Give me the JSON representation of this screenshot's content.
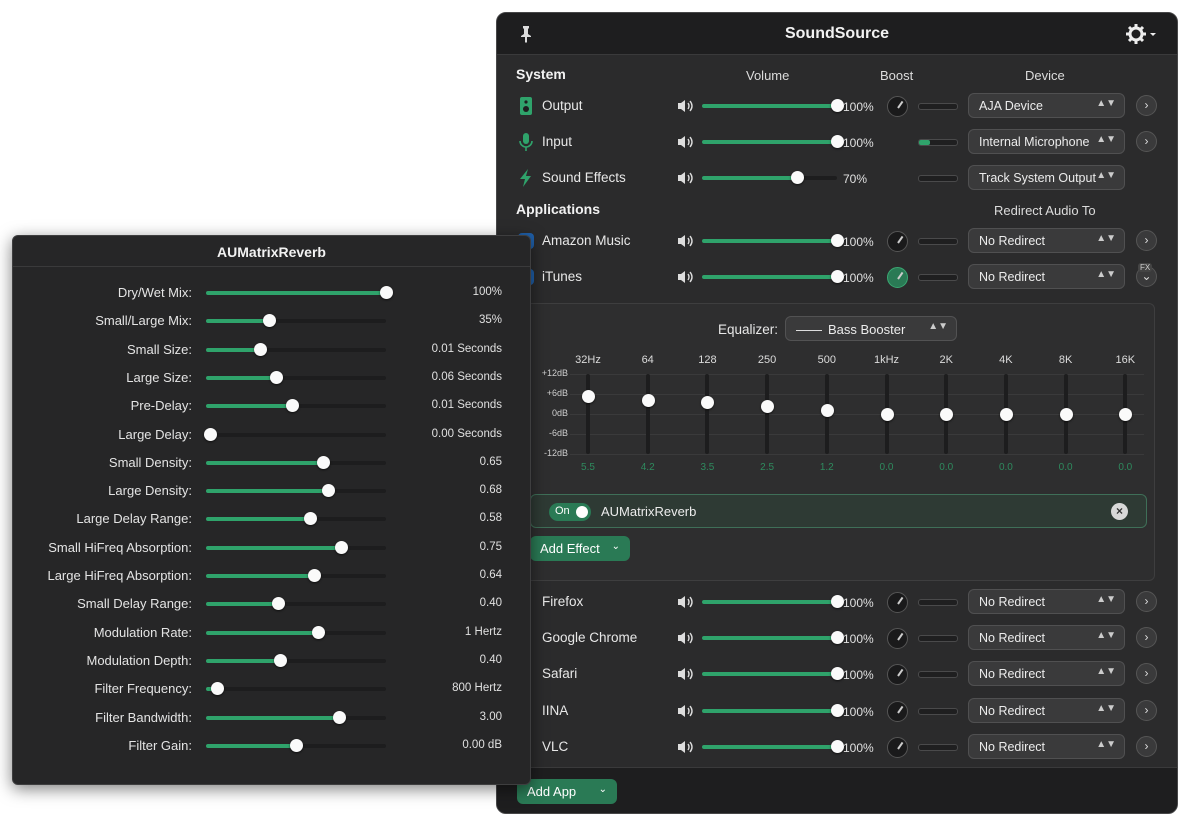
{
  "soundsource": {
    "title": "SoundSource",
    "headers": {
      "system": "System",
      "volume": "Volume",
      "boost": "Boost",
      "device": "Device",
      "applications": "Applications",
      "redirect": "Redirect Audio To"
    },
    "system_rows": [
      {
        "name": "Output",
        "icon": "speaker-icon",
        "volume": 100,
        "pct": "100%",
        "knob": true,
        "meter": 0,
        "device": "AJA Device",
        "chevron": true
      },
      {
        "name": "Input",
        "icon": "microphone-icon",
        "volume": 100,
        "pct": "100%",
        "knob": false,
        "meter": 0.3,
        "device": "Internal Microphone",
        "chevron": true
      },
      {
        "name": "Sound Effects",
        "icon": "lightning-icon",
        "volume": 70,
        "pct": "70%",
        "knob": false,
        "meter": 0,
        "device": "Track System Output",
        "chevron": false
      }
    ],
    "app_rows_top": [
      {
        "name": "Amazon Music",
        "volume": 100,
        "pct": "100%",
        "redirect": "No Redirect"
      },
      {
        "name": "iTunes",
        "volume": 100,
        "pct": "100%",
        "redirect": "No Redirect"
      }
    ],
    "equalizer": {
      "label": "Equalizer:",
      "preset": "Bass Booster",
      "db_labels": [
        "+12dB",
        "+6dB",
        "0dB",
        "-6dB",
        "-12dB"
      ],
      "bands": [
        {
          "freq": "32Hz",
          "gain": 5.5,
          "label": "5.5"
        },
        {
          "freq": "64",
          "gain": 4.2,
          "label": "4.2"
        },
        {
          "freq": "128",
          "gain": 3.5,
          "label": "3.5"
        },
        {
          "freq": "250",
          "gain": 2.5,
          "label": "2.5"
        },
        {
          "freq": "500",
          "gain": 1.2,
          "label": "1.2"
        },
        {
          "freq": "1kHz",
          "gain": 0,
          "label": "0.0"
        },
        {
          "freq": "2K",
          "gain": 0,
          "label": "0.0"
        },
        {
          "freq": "4K",
          "gain": 0,
          "label": "0.0"
        },
        {
          "freq": "8K",
          "gain": 0,
          "label": "0.0"
        },
        {
          "freq": "16K",
          "gain": 0,
          "label": "0.0"
        }
      ],
      "effect": {
        "toggle": "On",
        "name": "AUMatrixReverb"
      },
      "add_effect": "Add Effect",
      "fx_badge": "FX"
    },
    "app_rows_bottom": [
      {
        "name": "Firefox",
        "volume": 100,
        "pct": "100%",
        "redirect": "No Redirect"
      },
      {
        "name": "Google Chrome",
        "volume": 100,
        "pct": "100%",
        "redirect": "No Redirect"
      },
      {
        "name": "Safari",
        "volume": 100,
        "pct": "100%",
        "redirect": "No Redirect"
      },
      {
        "name": "IINA",
        "volume": 100,
        "pct": "100%",
        "redirect": "No Redirect"
      },
      {
        "name": "VLC",
        "volume": 100,
        "pct": "100%",
        "redirect": "No Redirect"
      }
    ],
    "add_app": "Add App"
  },
  "aumatrix": {
    "title": "AUMatrixReverb",
    "params": [
      {
        "label": "Dry/Wet Mix:",
        "value": "100%",
        "level": 1.0
      },
      {
        "label": "Small/Large Mix:",
        "value": "35%",
        "level": 0.35
      },
      {
        "label": "Small Size:",
        "value": "0.01 Seconds",
        "level": 0.3
      },
      {
        "label": "Large Size:",
        "value": "0.06 Seconds",
        "level": 0.39
      },
      {
        "label": "Pre-Delay:",
        "value": "0.01 Seconds",
        "level": 0.48
      },
      {
        "label": "Large Delay:",
        "value": "0.00 Seconds",
        "level": 0.02
      },
      {
        "label": "Small Density:",
        "value": "0.65",
        "level": 0.65
      },
      {
        "label": "Large Density:",
        "value": "0.68",
        "level": 0.68
      },
      {
        "label": "Large Delay Range:",
        "value": "0.58",
        "level": 0.58
      },
      {
        "label": "Small HiFreq Absorption:",
        "value": "0.75",
        "level": 0.75
      },
      {
        "label": "Large HiFreq Absorption:",
        "value": "0.64",
        "level": 0.6
      },
      {
        "label": "Small Delay Range:",
        "value": "0.40",
        "level": 0.4
      },
      {
        "label": "Modulation Rate:",
        "value": "1 Hertz",
        "level": 0.62
      },
      {
        "label": "Modulation Depth:",
        "value": "0.40",
        "level": 0.41
      },
      {
        "label": "Filter Frequency:",
        "value": "800 Hertz",
        "level": 0.06
      },
      {
        "label": "Filter Bandwidth:",
        "value": "3.00",
        "level": 0.74
      },
      {
        "label": "Filter Gain:",
        "value": "0.00 dB",
        "level": 0.5
      }
    ]
  },
  "colors": {
    "accent": "#2fa36b",
    "panel": "#2b2b2c",
    "dark": "#1e1e1f"
  }
}
